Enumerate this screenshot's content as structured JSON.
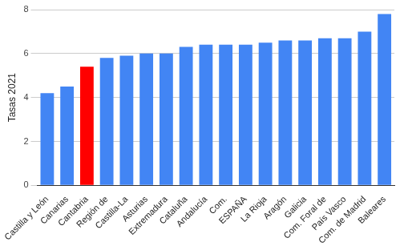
{
  "chart_data": {
    "type": "bar",
    "y_label": "Tasas 2021",
    "categories": [
      "Castilla y León",
      "Canarias",
      "Cantabria",
      "Región de",
      "Castilla-La",
      "Asturias",
      "Extremadura",
      "Cataluña",
      "Andalucía",
      "Com.",
      "ESPAÑA",
      "La Rioja",
      "Aragón",
      "Galicia",
      "Com. Foral de",
      "País Vasco",
      "Com. de Madrid",
      "Baleares"
    ],
    "values": [
      4.2,
      4.5,
      5.4,
      5.8,
      5.9,
      6.0,
      6.0,
      6.3,
      6.4,
      6.4,
      6.4,
      6.5,
      6.6,
      6.6,
      6.7,
      6.7,
      7.0,
      7.8
    ],
    "colors": [
      "#4285f4",
      "#4285f4",
      "#ff0000",
      "#4285f4",
      "#4285f4",
      "#4285f4",
      "#4285f4",
      "#4285f4",
      "#4285f4",
      "#4285f4",
      "#4285f4",
      "#4285f4",
      "#4285f4",
      "#4285f4",
      "#4285f4",
      "#4285f4",
      "#4285f4",
      "#4285f4"
    ],
    "ylim": [
      0,
      8
    ],
    "yticks": [
      0,
      2,
      4,
      6,
      8
    ],
    "grid": true
  }
}
